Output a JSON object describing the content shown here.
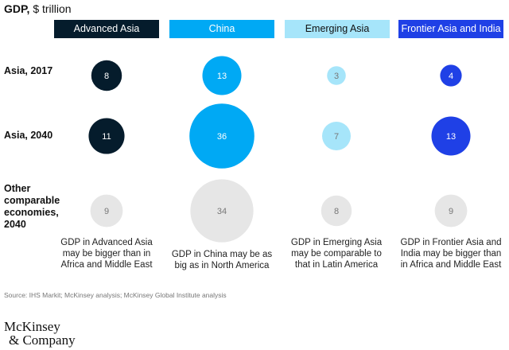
{
  "chart_data": {
    "type": "bubble",
    "title_bold": "GDP,",
    "title_rest": " $ trillion",
    "categories": [
      "Advanced Asia",
      "China",
      "Emerging Asia",
      "Frontier Asia and India"
    ],
    "colors": [
      "#051c2c",
      "#00a9f4",
      "#a6e5fa",
      "#1f40e6"
    ],
    "other_color": "#e6e6e6",
    "rows": [
      {
        "label": "Asia, 2017",
        "values": [
          8,
          13,
          3,
          4
        ]
      },
      {
        "label": "Asia, 2040",
        "values": [
          11,
          36,
          7,
          13
        ]
      },
      {
        "label": "Other comparable economies, 2040",
        "label_lines": [
          "Other",
          "comparable",
          "economies,",
          "2040"
        ],
        "values": [
          9,
          34,
          8,
          9
        ]
      }
    ],
    "descriptions": [
      [
        "GDP in Advanced Asia",
        "may be bigger than in",
        "Africa and Middle East"
      ],
      [
        "GDP in China may be as",
        "big as in North America"
      ],
      [
        "GDP in Emerging Asia",
        "may be comparable to",
        "that in Latin America"
      ],
      [
        "GDP in Frontier Asia and",
        "India may be bigger than",
        "in Africa and Middle East"
      ]
    ]
  },
  "source": "Source: IHS Markit; McKinsey analysis; McKinsey Global Institute analysis",
  "logo": [
    "McKinsey",
    "& Company"
  ]
}
